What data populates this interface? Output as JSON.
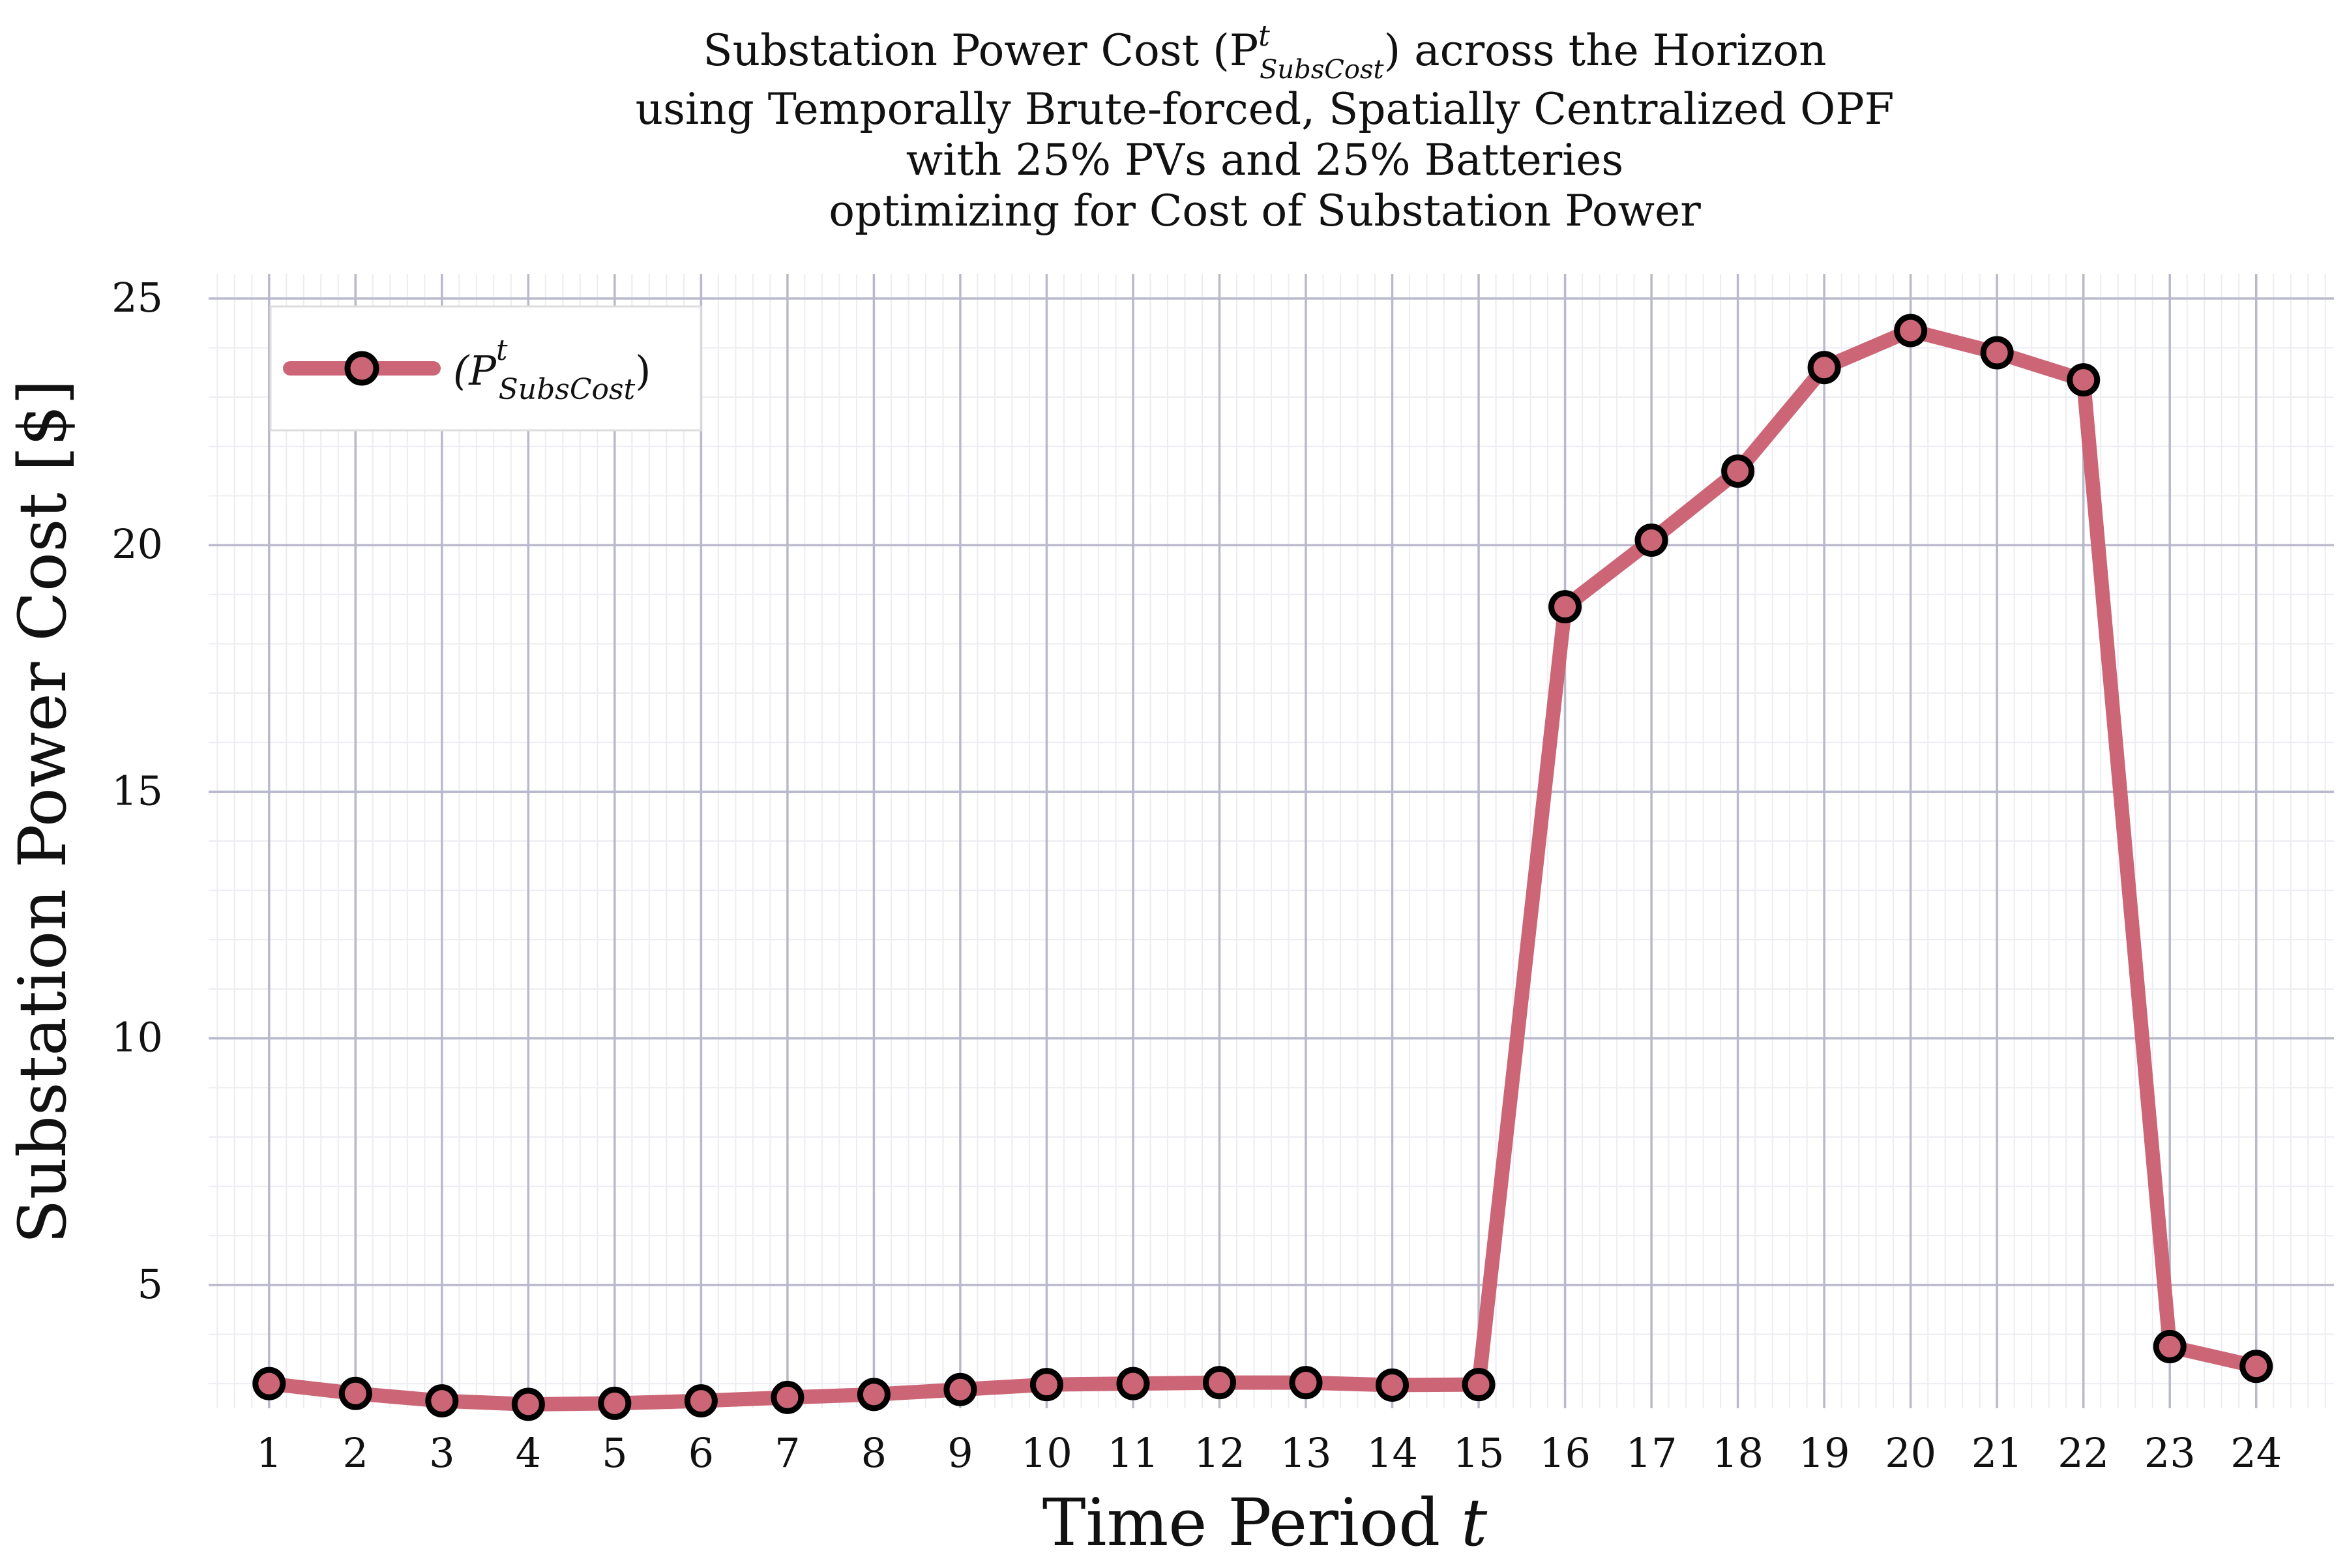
{
  "chart_data": {
    "type": "line",
    "title_lines": [
      "Substation Power Cost (P",
      "using Temporally Brute-forced, Spatially Centralized OPF",
      "with 25% PVs and 25% Batteries",
      "optimizing for Cost of Substation Power"
    ],
    "title_first_line_rest": ") across the Horizon",
    "title_symbol": {
      "sup": "t",
      "sub": "SubsCost"
    },
    "xlabel": "Time Period",
    "xlabel_var": "t",
    "ylabel": "Substation Power Cost [$]",
    "x": [
      1,
      2,
      3,
      4,
      5,
      6,
      7,
      8,
      9,
      10,
      11,
      12,
      13,
      14,
      15,
      16,
      17,
      18,
      19,
      20,
      21,
      22,
      23,
      24
    ],
    "x_tick_labels": [
      "1",
      "2",
      "3",
      "4",
      "5",
      "6",
      "7",
      "8",
      "9",
      "10",
      "11",
      "12",
      "13",
      "14",
      "15",
      "16",
      "17",
      "18",
      "19",
      "20",
      "21",
      "22",
      "23",
      "24"
    ],
    "y_ticks": [
      5,
      10,
      15,
      20,
      25
    ],
    "y_tick_labels": [
      "5",
      "10",
      "15",
      "20",
      "25"
    ],
    "xlim": [
      0.3,
      24.9
    ],
    "ylim": [
      2.5,
      25.5
    ],
    "grid": true,
    "legend_position": "top-left",
    "series": [
      {
        "legend_open": "(P",
        "legend_close": ")",
        "legend_sup": "t",
        "legend_sub": "SubsCost",
        "color": "#cc6677",
        "marker_edge": "#000000",
        "values": [
          3.0,
          2.8,
          2.65,
          2.58,
          2.6,
          2.65,
          2.72,
          2.78,
          2.88,
          2.98,
          3.0,
          3.02,
          3.02,
          2.97,
          2.98,
          18.75,
          20.1,
          21.5,
          23.6,
          24.35,
          23.9,
          23.35,
          3.75,
          3.35
        ]
      }
    ]
  }
}
